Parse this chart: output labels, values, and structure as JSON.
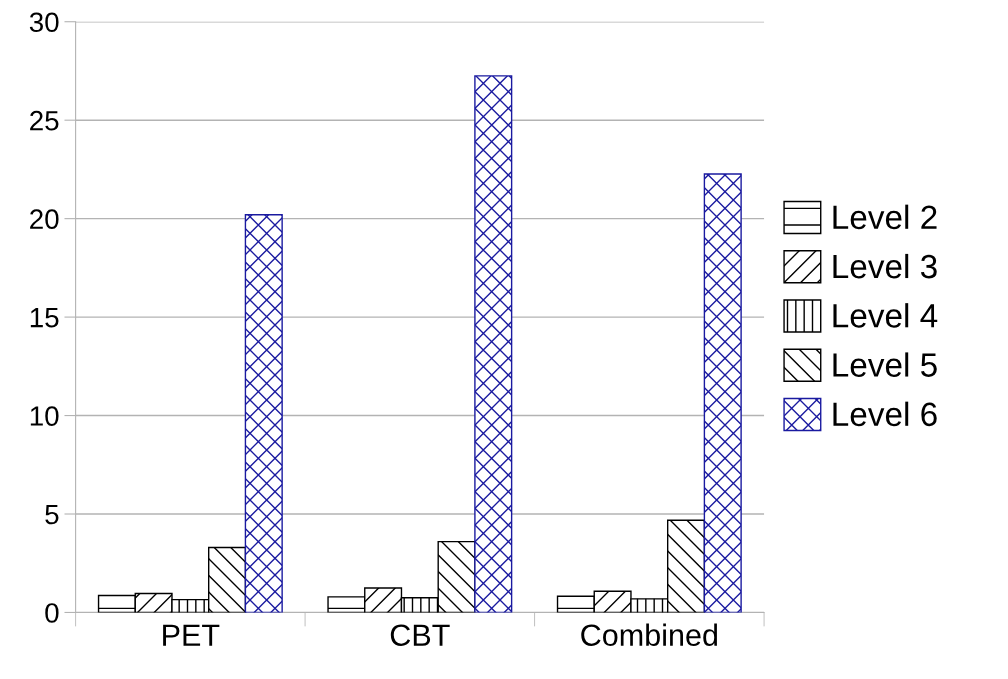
{
  "chart_data": {
    "type": "bar",
    "categories": [
      "PET",
      "CBT",
      "Combined"
    ],
    "series": [
      {
        "name": "Level 2",
        "color": "#000000",
        "values": [
          0.86,
          0.79,
          0.82
        ]
      },
      {
        "name": "Level 3",
        "color": "#000000",
        "values": [
          0.96,
          1.24,
          1.08
        ]
      },
      {
        "name": "Level 4",
        "color": "#000000",
        "values": [
          0.65,
          0.75,
          0.69
        ]
      },
      {
        "name": "Level 5",
        "color": "#000000",
        "values": [
          3.3,
          3.6,
          4.68
        ]
      },
      {
        "name": "Level 6",
        "color": "#1a1aa0",
        "values": [
          20.2,
          27.25,
          22.27
        ]
      }
    ],
    "ylim": [
      0,
      30
    ],
    "yticks": [
      0,
      5,
      10,
      15,
      20,
      25,
      30
    ],
    "grid": "y",
    "legend": "right"
  }
}
